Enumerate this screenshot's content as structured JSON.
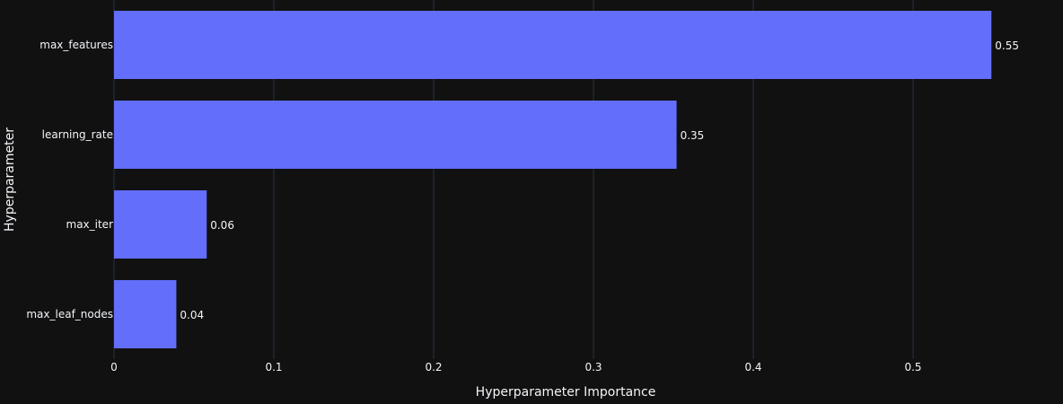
{
  "chart_data": {
    "type": "bar",
    "orientation": "horizontal",
    "categories": [
      "max_features",
      "learning_rate",
      "max_iter",
      "max_leaf_nodes"
    ],
    "values": [
      0.549,
      0.352,
      0.058,
      0.039
    ],
    "data_labels": [
      "0.55",
      "0.35",
      "0.06",
      "0.04"
    ],
    "xlabel": "Hyperparameter Importance",
    "ylabel": "Hyperparameter",
    "x_ticks": [
      0,
      0.1,
      0.2,
      0.3,
      0.4,
      0.5
    ],
    "x_tick_labels": [
      "0",
      "0.1",
      "0.2",
      "0.3",
      "0.4",
      "0.5"
    ],
    "xlim": [
      0,
      0.5775
    ],
    "grid": true,
    "colors": {
      "background": "#111111",
      "bar": "#636efa",
      "grid": "#283442",
      "text": "#f2f5fa"
    }
  }
}
